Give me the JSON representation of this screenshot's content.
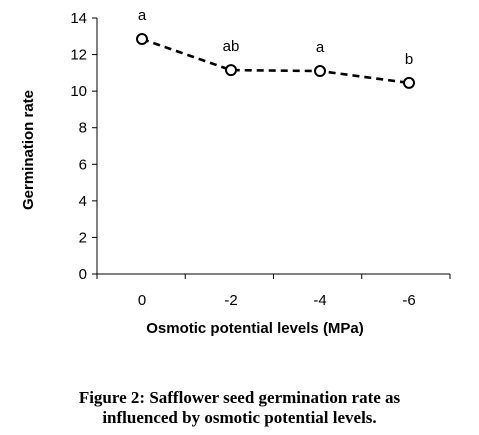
{
  "chart_data": {
    "type": "line",
    "x": [
      "0",
      "-2",
      "-4",
      "-6"
    ],
    "series": [
      {
        "values": [
          12.85,
          11.15,
          11.1,
          10.45
        ],
        "annotations": [
          "a",
          "ab",
          "a",
          "b"
        ]
      }
    ],
    "xlabel": "Osmotic potential levels (MPa)",
    "ylabel": "Germination rate",
    "ylim": [
      0,
      14
    ],
    "yticks": [
      0,
      2,
      4,
      6,
      8,
      10,
      12,
      14
    ],
    "grid": false,
    "line_style": "dashed",
    "marker": "open-circle",
    "color": "#000000"
  },
  "caption": {
    "line1": "Figure 2: Safflower seed germination rate as",
    "line2": "influenced by osmotic potential levels."
  }
}
